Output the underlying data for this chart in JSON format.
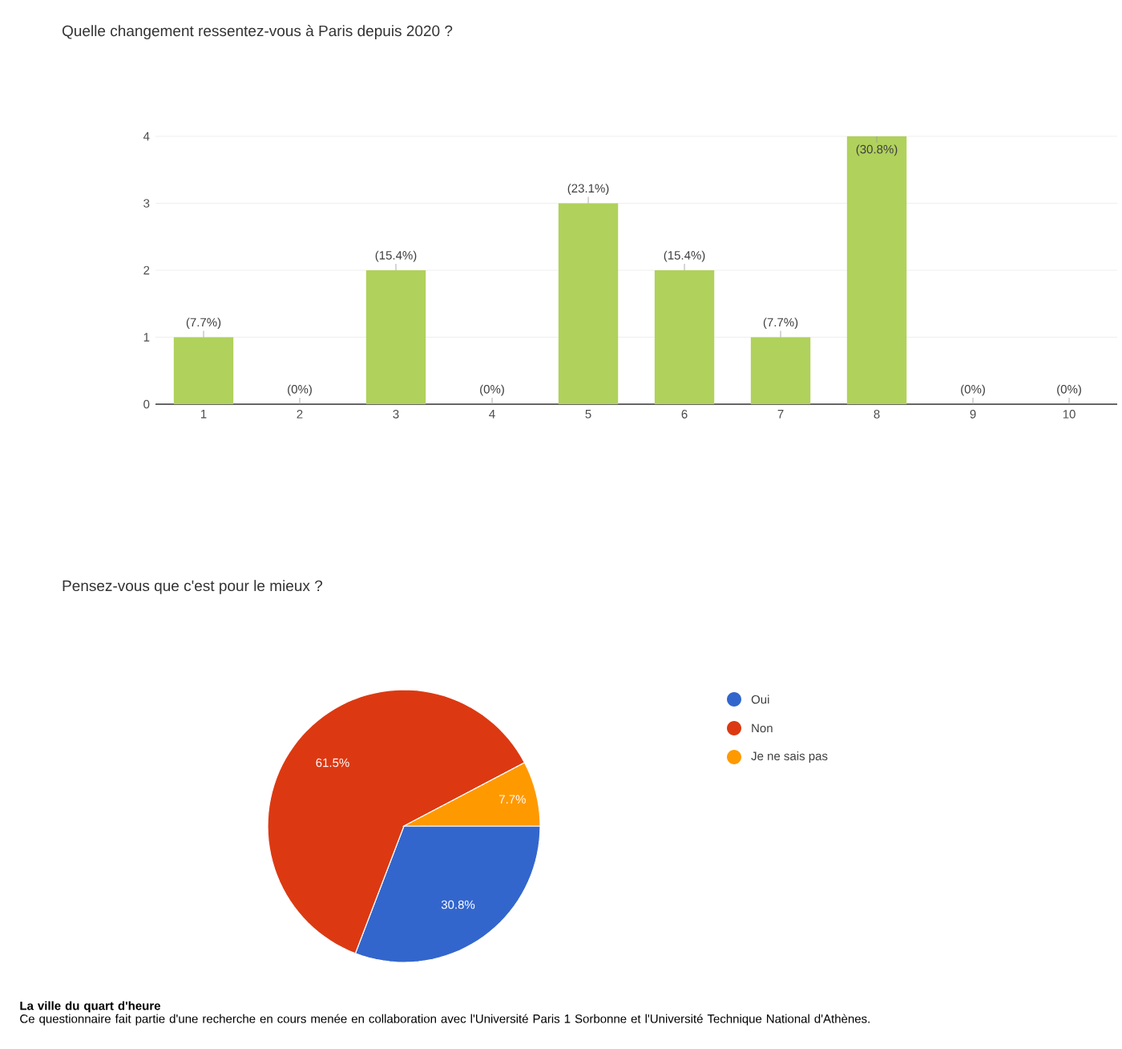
{
  "chart_data": [
    {
      "type": "bar",
      "title": "Quelle changement ressentez-vous à Paris depuis 2020 ?",
      "categories": [
        "1",
        "2",
        "3",
        "4",
        "5",
        "6",
        "7",
        "8",
        "9",
        "10"
      ],
      "values": [
        1,
        0,
        2,
        0,
        3,
        2,
        1,
        4,
        0,
        0
      ],
      "color": "#b0d15c",
      "annotations": [
        {
          "text": "(7.7%)",
          "x": "1",
          "y": 1
        },
        {
          "text": "(0%)",
          "x": "2",
          "y": 0
        },
        {
          "text": "(15.4%)",
          "x": "3",
          "y": 2
        },
        {
          "text": "(0%)",
          "x": "4",
          "y": 0
        },
        {
          "text": "(23.1%)",
          "x": "5",
          "y": 3
        },
        {
          "text": "(15.4%)",
          "x": "6",
          "y": 2
        },
        {
          "text": "(7.7%)",
          "x": "7",
          "y": 1
        },
        {
          "text": "(30.8%)",
          "x": "8",
          "y": 4
        },
        {
          "text": "(0%)",
          "x": "9",
          "y": 0
        },
        {
          "text": "(0%)",
          "x": "10",
          "y": 0
        }
      ],
      "ylim": [
        0,
        4
      ],
      "yticks": [
        0,
        1,
        2,
        3,
        4
      ],
      "grid": "y"
    },
    {
      "type": "pie",
      "title": "Pensez-vous que c'est pour le mieux ?",
      "categories": [
        "Oui",
        "Non",
        "Je ne sais pas"
      ],
      "values": [
        30.8,
        61.5,
        7.7
      ],
      "colors": [
        "#3366cc",
        "#dc3912",
        "#ff9900"
      ],
      "value_labels": [
        "30.8%",
        "61.5%",
        "7.7%"
      ],
      "legend": "right",
      "annotations": [
        "La ville du quart d'heure",
        "Ce questionnaire fait partie d'une recherche en cours menée en collaboration avec l'Université Paris 1 Sorbonne et l'Université Technique National d'Athènes."
      ]
    }
  ]
}
